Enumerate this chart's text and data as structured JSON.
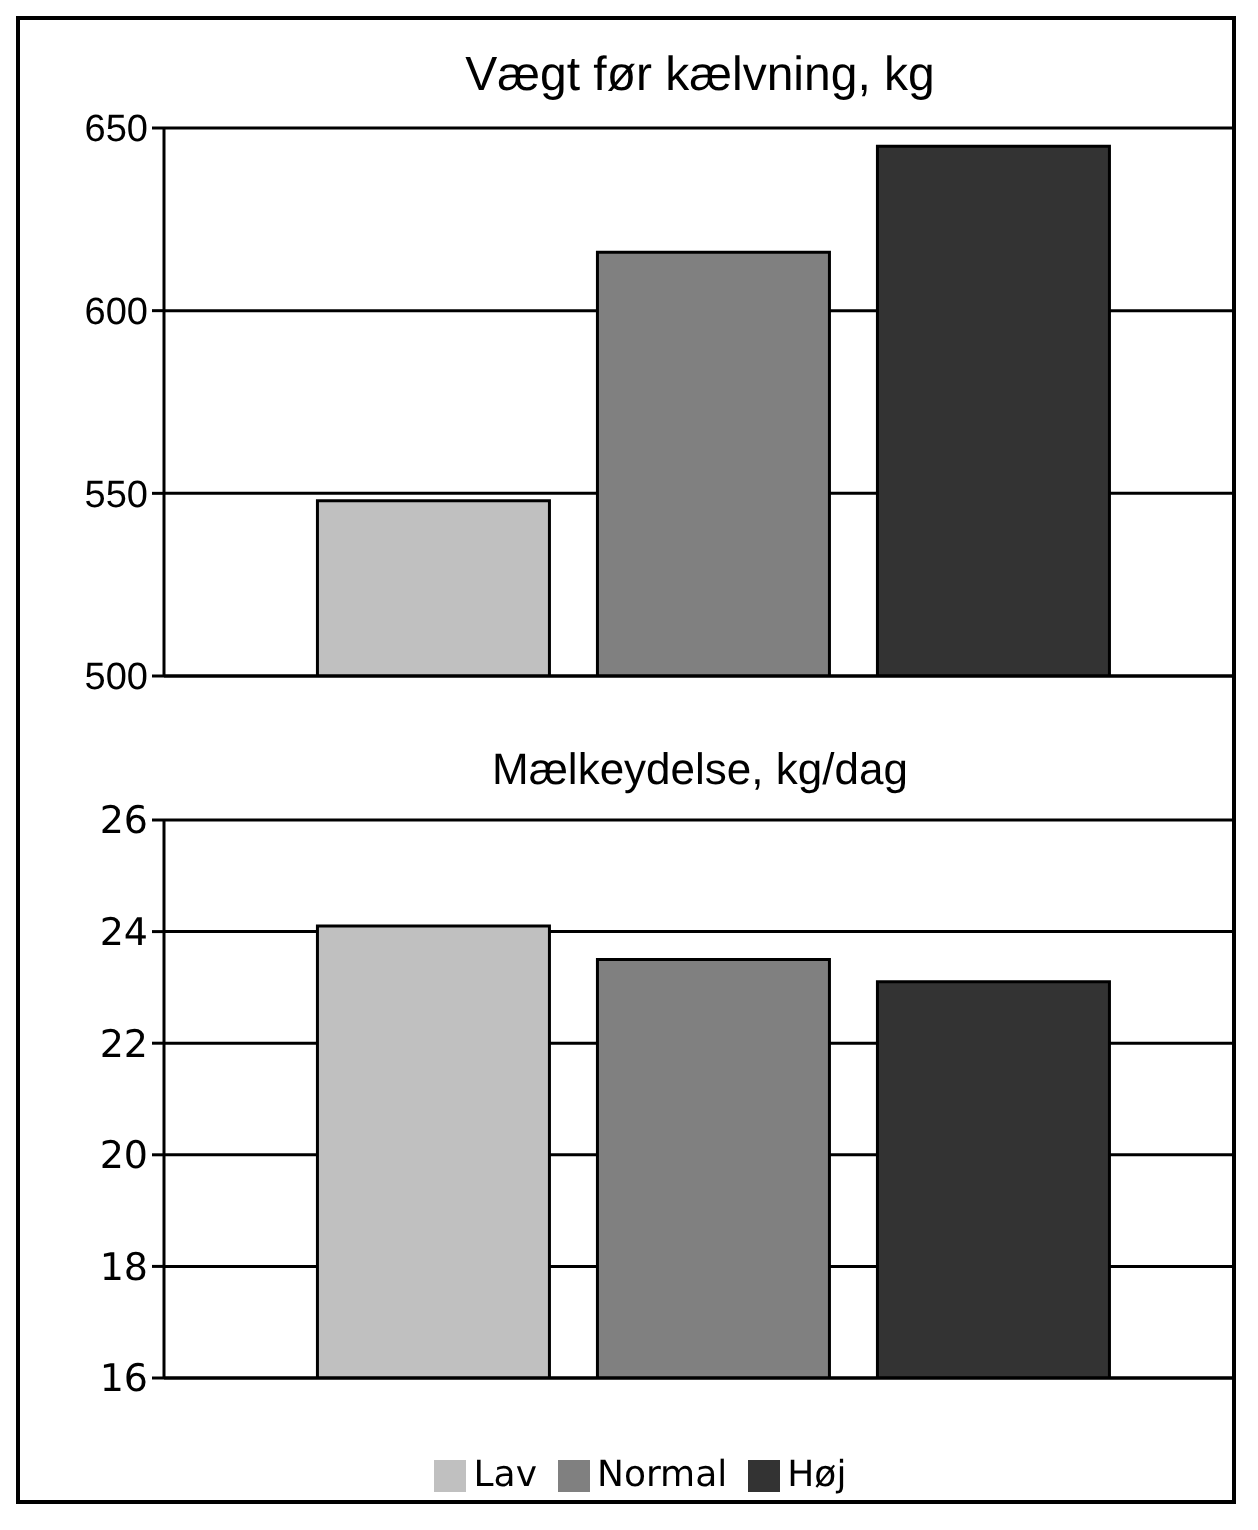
{
  "chart_data": [
    {
      "type": "bar",
      "title": "Vægt før kælvning, kg",
      "categories": [
        null
      ],
      "series": [
        {
          "color": "#c0c0c0",
          "values": [
            548
          ]
        },
        {
          "color": "#808080",
          "values": [
            616
          ]
        },
        {
          "color": "#333333",
          "values": [
            645
          ]
        }
      ],
      "ylim": [
        500,
        650
      ],
      "yticks": [
        500,
        550,
        600,
        650
      ],
      "grid": "y",
      "legend": false
    },
    {
      "type": "bar",
      "title": "Mælkeydelse, kg/dag",
      "categories": [
        null
      ],
      "series": [
        {
          "name": "Lav",
          "color": "#c0c0c0",
          "values": [
            24.1
          ]
        },
        {
          "name": "Normal",
          "color": "#808080",
          "values": [
            23.5
          ]
        },
        {
          "name": "Høj",
          "color": "#333333",
          "values": [
            23.1
          ]
        }
      ],
      "ylim": [
        16,
        26
      ],
      "yticks": [
        16,
        18,
        20,
        22,
        24,
        26
      ],
      "grid": "y",
      "legend": "bottom"
    }
  ]
}
